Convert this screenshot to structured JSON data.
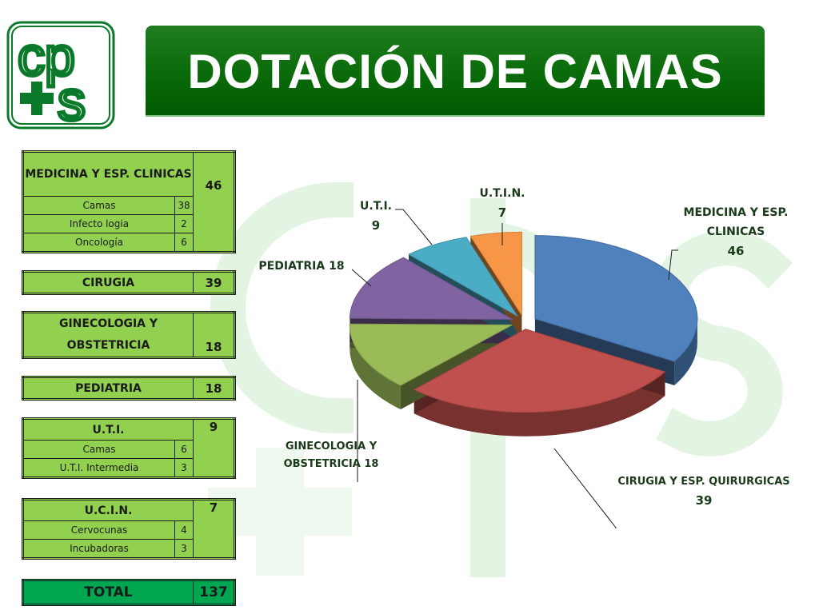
{
  "title": "DOTACIÓN DE CAMAS",
  "logo": {
    "top_letters": "cp",
    "bottom_letters": "s"
  },
  "colors": {
    "banner": "#0a6b0a",
    "table_fill": "#92d050",
    "total_fill": "#00a650",
    "slice_medicina": "#4f81bd",
    "slice_cirugia": "#c0504d",
    "slice_ginecologia": "#9bbb59",
    "slice_pediatria": "#8064a2",
    "slice_uti": "#4bacc6",
    "slice_ucin": "#f79646"
  },
  "tables": {
    "medicina": {
      "label": "MEDICINA Y ESP. CLINICAS",
      "total": "46",
      "rows": [
        {
          "label": "Camas",
          "value": "38"
        },
        {
          "label": "Infecto logia",
          "value": "2"
        },
        {
          "label": "Oncología",
          "value": "6"
        }
      ]
    },
    "cirugia": {
      "label": "CIRUGIA",
      "total": "39"
    },
    "ginecologia": {
      "label": "GINECOLOGIA Y OBSTETRICIA",
      "total": "18"
    },
    "pediatria": {
      "label": "PEDIATRIA",
      "total": "18"
    },
    "uti": {
      "label": "U.T.I.",
      "total": "9",
      "rows": [
        {
          "label": "Camas",
          "value": "6"
        },
        {
          "label": "U.T.I. Intermedia",
          "value": "3"
        }
      ]
    },
    "ucin": {
      "label": "U.C.I.N.",
      "total": "7",
      "rows": [
        {
          "label": "Cervocunas",
          "value": "4"
        },
        {
          "label": "Incubadoras",
          "value": "3"
        }
      ]
    },
    "total": {
      "label": "TOTAL",
      "value": "137"
    }
  },
  "chart_data": {
    "type": "pie",
    "title": "",
    "exploded": true,
    "three_d": true,
    "legend": "none",
    "slices": [
      {
        "label": "MEDICINA Y ESP. CLINICAS",
        "value": 46,
        "color": "#4f81bd"
      },
      {
        "label": "CIRUGIA Y ESP. QUIRURGICAS",
        "value": 39,
        "color": "#c0504d"
      },
      {
        "label": "GINECOLOGIA Y OBSTETRICIA",
        "value": 18,
        "color": "#9bbb59"
      },
      {
        "label": "PEDIATRIA",
        "value": 18,
        "color": "#8064a2"
      },
      {
        "label": "U.T.I.",
        "value": 9,
        "color": "#4bacc6"
      },
      {
        "label": "U.T.I.N.",
        "value": 7,
        "color": "#f79646"
      }
    ],
    "data_labels": {
      "medicina_l1": "MEDICINA Y ESP.",
      "medicina_l2": "CLINICAS",
      "medicina_v": "46",
      "cirugia_l1": "CIRUGIA Y ESP. QUIRURGICAS",
      "cirugia_v": "39",
      "gineco_l1": "GINECOLOGIA Y",
      "gineco_l2": "OBSTETRICIA 18",
      "pediatria": "PEDIATRIA 18",
      "uti_l1": "U.T.I.",
      "uti_v": "9",
      "utin_l1": "U.T.I.N.",
      "utin_v": "7"
    }
  }
}
